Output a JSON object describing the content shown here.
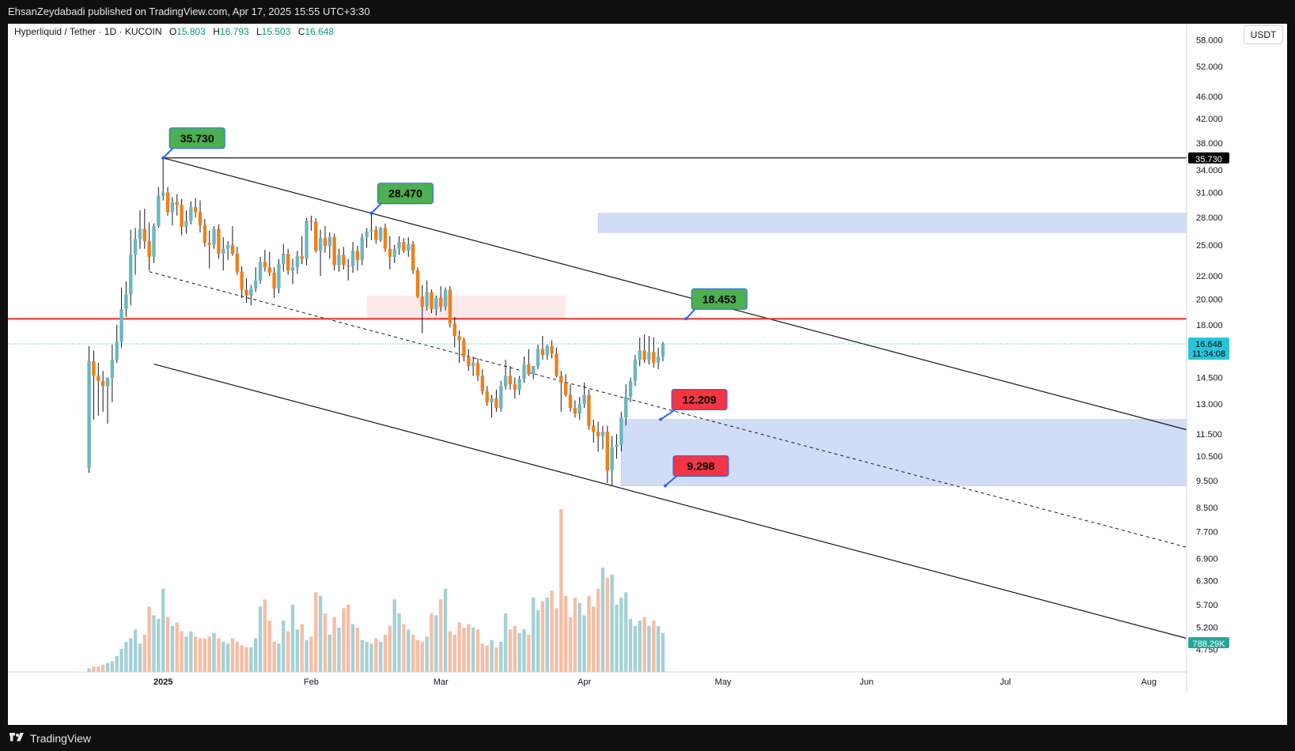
{
  "header": {
    "published": "EhsanZeydabadi published on TradingView.com, Apr 17, 2025 15:55 UTC+3:30"
  },
  "footer": {
    "brand": "TradingView",
    "logo_icon": "tradingview-logo-icon"
  },
  "legend": {
    "symbol": "Hyperliquid / Tether · 1D · KUCOIN",
    "o_label": "O",
    "o": "15.803",
    "h_label": "H",
    "h": "16.793",
    "l_label": "L",
    "l": "15.503",
    "c_label": "C",
    "c": "16.648"
  },
  "currency": "USDT",
  "colors": {
    "up": "#6bb7c1",
    "down": "#f07f1a",
    "resistance": "#e53935",
    "zone": "#c9d6f5",
    "green_label": "#4caf50",
    "red_label": "#f23645"
  },
  "chart_data": {
    "type": "candlestick",
    "y_scale": "log",
    "ylim": [
      4.3,
      62
    ],
    "y_ticks": [
      "58.000",
      "52.000",
      "46.000",
      "42.000",
      "38.000",
      "34.000",
      "31.000",
      "28.000",
      "25.000",
      "22.000",
      "20.000",
      "18.000",
      "14.500",
      "13.000",
      "11.500",
      "10.500",
      "9.500",
      "8.500",
      "7.700",
      "6.900",
      "6.300",
      "5.700",
      "5.200",
      "4.750"
    ],
    "x_ticks": [
      "2025",
      "Feb",
      "Mar",
      "Apr",
      "May",
      "Jun",
      "Jul",
      "Aug"
    ],
    "price_tags": {
      "level": "35.730",
      "last": "16.648",
      "countdown": "11:34:08",
      "volume": "788.29K"
    },
    "annotations": [
      "35.730",
      "28.470",
      "18.453",
      "12.209",
      "9.298"
    ],
    "levels": {
      "high": 35.73,
      "resistance": 18.453,
      "last": 16.648
    },
    "zones": [
      {
        "from_day": -14,
        "to_day": 180,
        "low": 26.3,
        "high": 28.47
      },
      {
        "from_day": -9,
        "to_day": 180,
        "low": 9.298,
        "high": 12.209
      },
      {
        "from_day": -64,
        "to_day": -21,
        "low": 18.453,
        "high": 20.3
      }
    ],
    "candles": [
      [
        -124,
        10.0,
        16.5,
        9.8,
        15.5
      ],
      [
        -123,
        15.5,
        16.2,
        12.2,
        14.6
      ],
      [
        -122,
        14.6,
        15.4,
        12.4,
        14.3
      ],
      [
        -121,
        14.3,
        14.9,
        12.6,
        14.0
      ],
      [
        -120,
        14.0,
        14.3,
        12.0,
        14.5
      ],
      [
        -119,
        14.5,
        16.6,
        13.1,
        15.6
      ],
      [
        -118,
        15.6,
        18.0,
        15.4,
        16.8
      ],
      [
        -117,
        16.8,
        21.0,
        16.4,
        19.2
      ],
      [
        -116,
        19.2,
        21.5,
        18.6,
        20.4
      ],
      [
        -115,
        20.4,
        26.6,
        19.5,
        24.0
      ],
      [
        -114,
        24.0,
        26.8,
        22.1,
        25.6
      ],
      [
        -113,
        25.6,
        28.8,
        24.6,
        26.7
      ],
      [
        -112,
        26.7,
        29.0,
        24.6,
        25.4
      ],
      [
        -111,
        25.4,
        27.4,
        22.5,
        23.8
      ],
      [
        -110,
        23.8,
        27.3,
        23.2,
        27.0
      ],
      [
        -109,
        27.0,
        31.7,
        26.8,
        30.6
      ],
      [
        -108,
        30.6,
        35.73,
        30.0,
        31.0
      ],
      [
        -107,
        31.0,
        31.7,
        28.2,
        28.6
      ],
      [
        -106,
        28.6,
        30.4,
        27.1,
        29.8
      ],
      [
        -105,
        29.8,
        30.8,
        28.2,
        29.5
      ],
      [
        -104,
        29.5,
        30.2,
        26.0,
        26.9
      ],
      [
        -103,
        26.9,
        28.8,
        26.2,
        27.6
      ],
      [
        -102,
        27.6,
        29.9,
        27.2,
        29.2
      ],
      [
        -101,
        29.2,
        30.3,
        28.0,
        28.6
      ],
      [
        -100,
        28.6,
        30.0,
        26.3,
        27.1
      ],
      [
        -99,
        27.1,
        27.8,
        24.8,
        25.2
      ],
      [
        -98,
        25.2,
        26.5,
        22.7,
        25.0
      ],
      [
        -97,
        25.0,
        27.0,
        24.6,
        26.7
      ],
      [
        -96,
        26.7,
        27.2,
        23.6,
        24.1
      ],
      [
        -95,
        24.1,
        25.8,
        22.5,
        24.6
      ],
      [
        -94,
        24.6,
        25.4,
        23.5,
        25.0
      ],
      [
        -93,
        25.0,
        27.0,
        23.9,
        24.1
      ],
      [
        -92,
        24.1,
        24.8,
        22.1,
        22.4
      ],
      [
        -91,
        22.4,
        22.9,
        20.1,
        20.8
      ],
      [
        -90,
        20.8,
        21.8,
        19.7,
        20.3
      ],
      [
        -89,
        20.3,
        21.2,
        19.5,
        20.9
      ],
      [
        -88,
        20.9,
        22.8,
        20.6,
        21.6
      ],
      [
        -87,
        21.6,
        23.8,
        21.3,
        23.3
      ],
      [
        -86,
        23.3,
        24.5,
        22.4,
        22.8
      ],
      [
        -85,
        22.8,
        24.3,
        22.0,
        22.3
      ],
      [
        -84,
        22.3,
        22.8,
        20.1,
        20.9
      ],
      [
        -83,
        20.9,
        23.6,
        20.5,
        23.1
      ],
      [
        -82,
        23.1,
        25.1,
        22.4,
        24.1
      ],
      [
        -81,
        24.1,
        24.6,
        22.1,
        22.5
      ],
      [
        -80,
        22.5,
        23.6,
        21.3,
        22.8
      ],
      [
        -79,
        22.8,
        24.4,
        22.2,
        23.9
      ],
      [
        -78,
        23.9,
        25.9,
        23.1,
        23.6
      ],
      [
        -77,
        23.6,
        27.9,
        23.0,
        27.6
      ],
      [
        -76,
        27.6,
        28.2,
        26.5,
        27.5
      ],
      [
        -75,
        27.5,
        27.9,
        24.2,
        24.4
      ],
      [
        -74,
        24.4,
        26.6,
        22.0,
        25.7
      ],
      [
        -73,
        25.7,
        27.0,
        24.2,
        24.9
      ],
      [
        -72,
        24.9,
        26.3,
        23.6,
        25.8
      ],
      [
        -71,
        25.8,
        26.2,
        22.5,
        23.0
      ],
      [
        -70,
        23.0,
        24.6,
        22.4,
        24.0
      ],
      [
        -69,
        24.0,
        24.8,
        22.6,
        23.0
      ],
      [
        -68,
        23.0,
        23.6,
        21.6,
        22.9
      ],
      [
        -67,
        22.9,
        25.3,
        22.3,
        24.4
      ],
      [
        -66,
        24.4,
        24.9,
        22.5,
        23.5
      ],
      [
        -65,
        23.5,
        26.2,
        23.0,
        25.8
      ],
      [
        -64,
        25.8,
        26.8,
        24.7,
        26.4
      ],
      [
        -63,
        26.4,
        28.47,
        25.5,
        26.6
      ],
      [
        -62,
        26.6,
        27.0,
        25.1,
        25.5
      ],
      [
        -61,
        25.5,
        26.9,
        25.3,
        26.8
      ],
      [
        -60,
        26.8,
        27.3,
        24.3,
        24.6
      ],
      [
        -59,
        24.6,
        25.9,
        22.6,
        23.8
      ],
      [
        -58,
        23.8,
        25.0,
        23.2,
        24.6
      ],
      [
        -57,
        24.6,
        25.9,
        24.0,
        25.3
      ],
      [
        -56,
        25.3,
        25.7,
        24.2,
        24.4
      ],
      [
        -55,
        24.4,
        25.8,
        23.8,
        25.1
      ],
      [
        -54,
        25.1,
        25.4,
        22.2,
        22.5
      ],
      [
        -53,
        22.5,
        22.8,
        20.1,
        20.2
      ],
      [
        -52,
        20.2,
        21.2,
        17.4,
        19.4
      ],
      [
        -51,
        19.4,
        21.6,
        19.1,
        20.6
      ],
      [
        -50,
        20.6,
        20.8,
        18.9,
        19.2
      ],
      [
        -49,
        19.2,
        20.3,
        18.7,
        20.1
      ],
      [
        -48,
        20.1,
        21.1,
        19.0,
        19.4
      ],
      [
        -47,
        19.4,
        21.0,
        19.1,
        20.8
      ],
      [
        -46,
        20.8,
        21.1,
        17.8,
        18.1
      ],
      [
        -45,
        18.1,
        18.6,
        16.4,
        17.2
      ],
      [
        -44,
        17.2,
        17.6,
        15.4,
        16.9
      ],
      [
        -43,
        16.9,
        17.1,
        15.5,
        15.8
      ],
      [
        -42,
        15.8,
        16.3,
        14.9,
        15.2
      ],
      [
        -41,
        15.2,
        15.8,
        14.6,
        15.4
      ],
      [
        -40,
        15.4,
        15.7,
        14.3,
        14.6
      ],
      [
        -39,
        14.6,
        15.0,
        13.5,
        13.7
      ],
      [
        -38,
        13.7,
        14.0,
        12.9,
        13.1
      ],
      [
        -37,
        13.1,
        13.5,
        12.3,
        13.3
      ],
      [
        -36,
        13.3,
        13.8,
        12.6,
        12.8
      ],
      [
        -35,
        12.8,
        14.3,
        12.6,
        14.0
      ],
      [
        -34,
        14.0,
        15.6,
        13.8,
        14.6
      ],
      [
        -33,
        14.6,
        15.2,
        13.8,
        14.1
      ],
      [
        -32,
        14.1,
        14.5,
        13.3,
        13.8
      ],
      [
        -31,
        13.8,
        14.6,
        13.5,
        14.4
      ],
      [
        -30,
        14.4,
        15.8,
        14.2,
        15.3
      ],
      [
        -29,
        15.3,
        16.3,
        14.6,
        14.7
      ],
      [
        -28,
        14.7,
        15.2,
        14.4,
        15.2
      ],
      [
        -27,
        15.2,
        16.6,
        15.0,
        16.3
      ],
      [
        -26,
        16.3,
        17.2,
        15.6,
        15.9
      ],
      [
        -25,
        15.9,
        16.6,
        15.6,
        16.5
      ],
      [
        -24,
        16.5,
        16.9,
        15.7,
        16.0
      ],
      [
        -23,
        16.0,
        16.4,
        14.5,
        14.6
      ],
      [
        -22,
        14.6,
        14.9,
        12.6,
        14.2
      ],
      [
        -21,
        14.2,
        14.7,
        13.4,
        13.5
      ],
      [
        -20,
        13.5,
        14.1,
        12.6,
        12.8
      ],
      [
        -19,
        12.8,
        13.2,
        12.3,
        12.5
      ],
      [
        -18,
        12.5,
        13.4,
        12.2,
        13.0
      ],
      [
        -17,
        13.0,
        14.2,
        12.8,
        13.5
      ],
      [
        -16,
        13.5,
        13.8,
        11.7,
        11.9
      ],
      [
        -15,
        11.9,
        12.2,
        11.1,
        11.6
      ],
      [
        -14,
        11.6,
        12.1,
        10.7,
        11.4
      ],
      [
        -13,
        11.4,
        11.9,
        10.8,
        11.6
      ],
      [
        -12,
        11.6,
        11.9,
        9.4,
        9.9
      ],
      [
        -11,
        9.9,
        11.4,
        9.298,
        10.9
      ],
      [
        -10,
        10.9,
        11.5,
        10.4,
        11.0
      ],
      [
        -9,
        11.0,
        12.6,
        10.7,
        12.3
      ],
      [
        -8,
        12.3,
        14.1,
        11.9,
        13.4
      ],
      [
        -7,
        13.4,
        14.5,
        13.1,
        14.3
      ],
      [
        -6,
        14.3,
        15.9,
        14.0,
        15.6
      ],
      [
        -5,
        15.6,
        17.1,
        15.2,
        16.2
      ],
      [
        -4,
        16.2,
        17.3,
        15.4,
        15.6
      ],
      [
        -3,
        15.6,
        17.2,
        15.3,
        16.1
      ],
      [
        -2,
        16.1,
        17.1,
        15.1,
        15.4
      ],
      [
        -1,
        15.4,
        16.4,
        15.0,
        15.8
      ],
      [
        0,
        15.8,
        16.793,
        15.503,
        16.648
      ]
    ],
    "volumes": [
      [
        -124,
        0.2
      ],
      [
        -123,
        0.3
      ],
      [
        -122,
        0.3
      ],
      [
        -121,
        0.4
      ],
      [
        -120,
        0.5
      ],
      [
        -119,
        0.6
      ],
      [
        -118,
        0.9
      ],
      [
        -117,
        1.3
      ],
      [
        -116,
        1.7
      ],
      [
        -115,
        1.9
      ],
      [
        -114,
        2.4
      ],
      [
        -113,
        1.6
      ],
      [
        -112,
        2.1
      ],
      [
        -111,
        3.7
      ],
      [
        -110,
        3.2
      ],
      [
        -109,
        3.0
      ],
      [
        -108,
        4.7
      ],
      [
        -107,
        3.1
      ],
      [
        -106,
        2.6
      ],
      [
        -105,
        2.8
      ],
      [
        -104,
        2.3
      ],
      [
        -103,
        2.0
      ],
      [
        -102,
        2.3
      ],
      [
        -101,
        2.0
      ],
      [
        -100,
        1.9
      ],
      [
        -99,
        1.9
      ],
      [
        -98,
        2.0
      ],
      [
        -97,
        2.2
      ],
      [
        -96,
        1.9
      ],
      [
        -95,
        1.7
      ],
      [
        -94,
        1.6
      ],
      [
        -93,
        1.9
      ],
      [
        -92,
        1.7
      ],
      [
        -91,
        1.5
      ],
      [
        -90,
        1.4
      ],
      [
        -89,
        1.4
      ],
      [
        -88,
        1.9
      ],
      [
        -87,
        3.7
      ],
      [
        -86,
        4.1
      ],
      [
        -85,
        2.9
      ],
      [
        -84,
        1.7
      ],
      [
        -83,
        1.6
      ],
      [
        -82,
        2.9
      ],
      [
        -81,
        2.3
      ],
      [
        -80,
        3.8
      ],
      [
        -79,
        2.4
      ],
      [
        -78,
        2.7
      ],
      [
        -77,
        1.8
      ],
      [
        -76,
        2.0
      ],
      [
        -75,
        4.5
      ],
      [
        -74,
        4.3
      ],
      [
        -73,
        3.3
      ],
      [
        -72,
        2.1
      ],
      [
        -71,
        3.1
      ],
      [
        -70,
        2.5
      ],
      [
        -69,
        3.6
      ],
      [
        -68,
        3.8
      ],
      [
        -67,
        2.7
      ],
      [
        -66,
        2.5
      ],
      [
        -65,
        1.8
      ],
      [
        -64,
        1.7
      ],
      [
        -63,
        1.6
      ],
      [
        -62,
        1.9
      ],
      [
        -61,
        1.7
      ],
      [
        -60,
        2.1
      ],
      [
        -59,
        2.6
      ],
      [
        -58,
        4.1
      ],
      [
        -57,
        3.3
      ],
      [
        -56,
        2.7
      ],
      [
        -55,
        2.4
      ],
      [
        -54,
        2.1
      ],
      [
        -53,
        1.8
      ],
      [
        -52,
        1.7
      ],
      [
        -51,
        2.0
      ],
      [
        -50,
        3.3
      ],
      [
        -49,
        3.2
      ],
      [
        -48,
        4.1
      ],
      [
        -47,
        4.7
      ],
      [
        -46,
        2.3
      ],
      [
        -45,
        2.1
      ],
      [
        -44,
        2.8
      ],
      [
        -43,
        2.5
      ],
      [
        -42,
        2.7
      ],
      [
        -41,
        2.5
      ],
      [
        -40,
        2.4
      ],
      [
        -39,
        1.6
      ],
      [
        -38,
        1.5
      ],
      [
        -37,
        1.8
      ],
      [
        -36,
        1.4
      ],
      [
        -35,
        1.7
      ],
      [
        -34,
        3.3
      ],
      [
        -33,
        2.4
      ],
      [
        -32,
        2.6
      ],
      [
        -31,
        2.2
      ],
      [
        -30,
        2.4
      ],
      [
        -29,
        2.1
      ],
      [
        -28,
        4.2
      ],
      [
        -27,
        3.5
      ],
      [
        -26,
        4.0
      ],
      [
        -25,
        4.2
      ],
      [
        -24,
        4.6
      ],
      [
        -23,
        3.6
      ],
      [
        -22,
        9.2
      ],
      [
        -21,
        4.3
      ],
      [
        -20,
        3.1
      ],
      [
        -19,
        4.2
      ],
      [
        -18,
        3.9
      ],
      [
        -17,
        3.2
      ],
      [
        -16,
        4.3
      ],
      [
        -15,
        3.7
      ],
      [
        -14,
        4.7
      ],
      [
        -13,
        5.9
      ],
      [
        -12,
        5.3
      ],
      [
        -11,
        5.5
      ],
      [
        -10,
        3.8
      ],
      [
        -9,
        4.2
      ],
      [
        -8,
        4.5
      ],
      [
        -7,
        3.0
      ],
      [
        -6,
        2.6
      ],
      [
        -5,
        2.9
      ],
      [
        -4,
        3.1
      ],
      [
        -3,
        2.6
      ],
      [
        -2,
        2.9
      ],
      [
        -1,
        2.6
      ],
      [
        0,
        2.2
      ]
    ]
  }
}
